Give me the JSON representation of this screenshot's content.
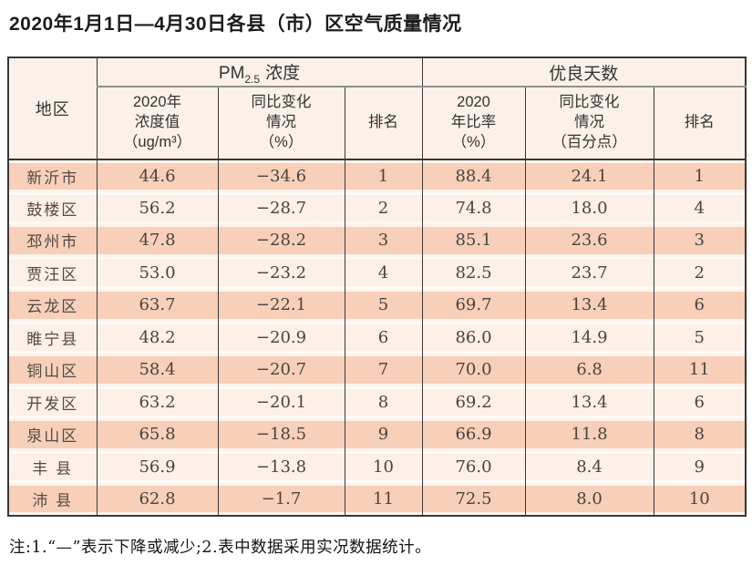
{
  "title": "2020年1月1日—4月30日各县（市）区空气质量情况",
  "note": "注:1.“—”表示下降或减少;2.表中数据采用实况数据统计。",
  "colors": {
    "band_peach": "#f8cfb9",
    "band_light": "#fdf0e7",
    "header_bg": "#fcf1e8",
    "border_dark": "#383838",
    "divider_gray": "#8f8f8f"
  },
  "table": {
    "region_header": "地区",
    "group_pm": {
      "prefix": "PM",
      "sub": "2.5",
      "suffix": "浓度"
    },
    "group_good": "优良天数",
    "subheaders": {
      "pm_value": "2020年\n浓度值\n（ug/m³）",
      "pm_change": "同比变化\n情况\n（%）",
      "pm_rank": "排名",
      "good_ratio": "2020\n年比率\n（%）",
      "good_change": "同比变化\n情况\n（百分点）",
      "good_rank": "排名"
    },
    "rows": [
      {
        "region": "新沂市",
        "pm_value": "44.6",
        "pm_change": "−34.6",
        "pm_rank": "1",
        "good_ratio": "88.4",
        "good_change": "24.1",
        "good_rank": "1"
      },
      {
        "region": "鼓楼区",
        "pm_value": "56.2",
        "pm_change": "−28.7",
        "pm_rank": "2",
        "good_ratio": "74.8",
        "good_change": "18.0",
        "good_rank": "4"
      },
      {
        "region": "邳州市",
        "pm_value": "47.8",
        "pm_change": "−28.2",
        "pm_rank": "3",
        "good_ratio": "85.1",
        "good_change": "23.6",
        "good_rank": "3"
      },
      {
        "region": "贾汪区",
        "pm_value": "53.0",
        "pm_change": "−23.2",
        "pm_rank": "4",
        "good_ratio": "82.5",
        "good_change": "23.7",
        "good_rank": "2"
      },
      {
        "region": "云龙区",
        "pm_value": "63.7",
        "pm_change": "−22.1",
        "pm_rank": "5",
        "good_ratio": "69.7",
        "good_change": "13.4",
        "good_rank": "6"
      },
      {
        "region": "睢宁县",
        "pm_value": "48.2",
        "pm_change": "−20.9",
        "pm_rank": "6",
        "good_ratio": "86.0",
        "good_change": "14.9",
        "good_rank": "5"
      },
      {
        "region": "铜山区",
        "pm_value": "58.4",
        "pm_change": "−20.7",
        "pm_rank": "7",
        "good_ratio": "70.0",
        "good_change": "6.8",
        "good_rank": "11"
      },
      {
        "region": "开发区",
        "pm_value": "63.2",
        "pm_change": "−20.1",
        "pm_rank": "8",
        "good_ratio": "69.2",
        "good_change": "13.4",
        "good_rank": "6"
      },
      {
        "region": "泉山区",
        "pm_value": "65.8",
        "pm_change": "−18.5",
        "pm_rank": "9",
        "good_ratio": "66.9",
        "good_change": "11.8",
        "good_rank": "8"
      },
      {
        "region": "丰 县",
        "pm_value": "56.9",
        "pm_change": "−13.8",
        "pm_rank": "10",
        "good_ratio": "76.0",
        "good_change": "8.4",
        "good_rank": "9"
      },
      {
        "region": "沛 县",
        "pm_value": "62.8",
        "pm_change": "−1.7",
        "pm_rank": "11",
        "good_ratio": "72.5",
        "good_change": "8.0",
        "good_rank": "10"
      }
    ]
  }
}
